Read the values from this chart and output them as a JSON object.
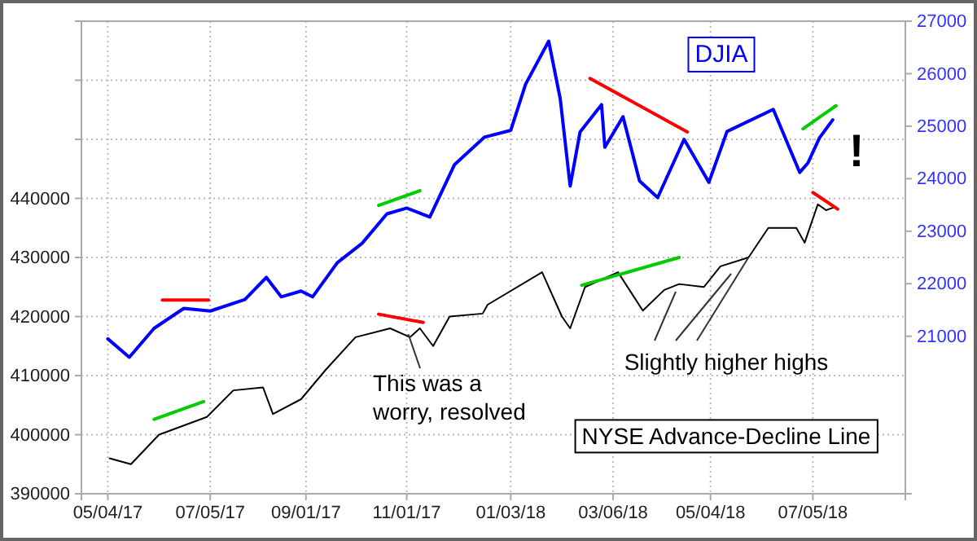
{
  "chart_data": {
    "type": "line",
    "grid": true,
    "xlim": [
      "2017-04-18",
      "2018-08-30"
    ],
    "xticks": [
      {
        "value": "2017-05-04",
        "label": "05/04/17"
      },
      {
        "value": "2017-07-05",
        "label": "07/05/17"
      },
      {
        "value": "2017-09-01",
        "label": "09/01/17"
      },
      {
        "value": "2017-11-01",
        "label": "11/01/17"
      },
      {
        "value": "2018-01-03",
        "label": "01/03/18"
      },
      {
        "value": "2018-03-06",
        "label": "03/06/18"
      },
      {
        "value": "2018-05-04",
        "label": "05/04/18"
      },
      {
        "value": "2018-07-05",
        "label": "07/05/18"
      }
    ],
    "ylim": [
      390000,
      470000
    ],
    "yticks": [
      390000,
      400000,
      410000,
      420000,
      430000,
      440000,
      {
        "value": 450000,
        "label": null
      },
      {
        "value": 460000,
        "label": null
      }
    ],
    "y2lim": [
      18000,
      27000
    ],
    "y2ticks": [
      21000,
      22000,
      23000,
      24000,
      25000,
      26000,
      27000
    ],
    "annotations": [
      {
        "text": "This was a worry, resolved",
        "x": "2017-11-02",
        "y": 417000
      },
      {
        "text": "Slightly higher highs",
        "x": "2018-05-27",
        "y": 430000
      },
      "!"
    ],
    "series": [
      {
        "name": "DJIA",
        "color": "#0000ff",
        "axis": "y2",
        "x": [
          "2017-05-04",
          "2017-05-17",
          "2017-06-01",
          "2017-06-19",
          "2017-07-05",
          "2017-07-26",
          "2017-08-08",
          "2017-08-17",
          "2017-08-29",
          "2017-09-05",
          "2017-09-20",
          "2017-10-05",
          "2017-10-20",
          "2017-11-01",
          "2017-11-15",
          "2017-11-30",
          "2017-12-18",
          "2018-01-03",
          "2018-01-12",
          "2018-01-26",
          "2018-02-02",
          "2018-02-08",
          "2018-02-14",
          "2018-02-27",
          "2018-03-01",
          "2018-03-12",
          "2018-03-22",
          "2018-04-02",
          "2018-04-18",
          "2018-05-03",
          "2018-05-14",
          "2018-06-11",
          "2018-06-27",
          "2018-07-02",
          "2018-07-09",
          "2018-07-17"
        ],
        "values": [
          20950,
          20600,
          21150,
          21530,
          21480,
          21700,
          22120,
          21750,
          21860,
          21750,
          22400,
          22770,
          23330,
          23440,
          23270,
          24270,
          24790,
          24920,
          25800,
          26620,
          25520,
          23860,
          24890,
          25410,
          24600,
          25180,
          23960,
          23640,
          24750,
          23930,
          24900,
          25320,
          24120,
          24300,
          24780,
          25120
        ]
      },
      {
        "name": "NYSE Advance-Decline Line",
        "color": "#000000",
        "axis": "y",
        "x": [
          "2017-05-05",
          "2017-05-18",
          "2017-06-04",
          "2017-07-03",
          "2017-07-19",
          "2017-08-06",
          "2017-08-12",
          "2017-08-29",
          "2017-09-13",
          "2017-10-01",
          "2017-10-22",
          "2017-11-03",
          "2017-11-09",
          "2017-11-17",
          "2017-11-27",
          "2017-12-17",
          "2017-12-20",
          "2018-01-22",
          "2018-02-03",
          "2018-02-08",
          "2018-02-17",
          "2018-03-09",
          "2018-03-24",
          "2018-04-06",
          "2018-04-15",
          "2018-04-30",
          "2018-05-10",
          "2018-05-27",
          "2018-06-08",
          "2018-06-25",
          "2018-06-30",
          "2018-07-08",
          "2018-07-13",
          "2018-07-18"
        ],
        "values": [
          396000,
          395000,
          400000,
          403000,
          407500,
          408000,
          403500,
          406000,
          411000,
          416500,
          418000,
          416500,
          418000,
          415000,
          420000,
          420500,
          422000,
          427500,
          420000,
          418000,
          425000,
          427500,
          421000,
          424500,
          425500,
          425000,
          428500,
          430000,
          435000,
          435000,
          432500,
          439000,
          438000,
          438500
        ]
      },
      {
        "type": "line",
        "color": "#ff0000",
        "axis": "y2",
        "x": [
          "2017-06-06",
          "2017-07-04"
        ],
        "values": [
          21690,
          21690
        ]
      },
      {
        "type": "line",
        "color": "#00cc00",
        "axis": "y2",
        "x": [
          "2017-10-15",
          "2017-11-09"
        ],
        "values": [
          23490,
          23770
        ]
      },
      {
        "type": "line",
        "color": "#ff0000",
        "axis": "y2",
        "x": [
          "2018-02-20",
          "2018-04-20"
        ],
        "values": [
          25910,
          24890
        ]
      },
      {
        "type": "line",
        "color": "#00cc00",
        "axis": "y2",
        "x": [
          "2018-06-29",
          "2018-07-19"
        ],
        "values": [
          24950,
          25390
        ]
      },
      {
        "type": "line",
        "color": "#00cc00",
        "axis": "y",
        "x": [
          "2017-06-01",
          "2017-07-01"
        ],
        "values": [
          402600,
          405600
        ]
      },
      {
        "type": "line",
        "color": "#ff0000",
        "axis": "y",
        "x": [
          "2017-10-15",
          "2017-11-11"
        ],
        "values": [
          420400,
          419000
        ]
      },
      {
        "type": "line",
        "color": "#00cc00",
        "axis": "y",
        "x": [
          "2018-02-15",
          "2018-04-15"
        ],
        "values": [
          425300,
          430000
        ]
      },
      {
        "type": "line",
        "color": "#ff0000",
        "axis": "y",
        "x": [
          "2018-07-05",
          "2018-07-20"
        ],
        "values": [
          441000,
          438200
        ]
      }
    ]
  }
}
